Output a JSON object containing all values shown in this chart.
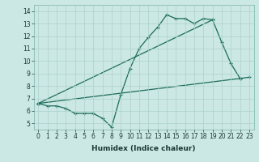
{
  "title": "",
  "xlabel": "Humidex (Indice chaleur)",
  "background_color": "#cce8e4",
  "grid_color": "#aad0cc",
  "line_color": "#1a6b5a",
  "xlim": [
    -0.5,
    23.5
  ],
  "ylim": [
    4.5,
    14.5
  ],
  "xticks": [
    0,
    1,
    2,
    3,
    4,
    5,
    6,
    7,
    8,
    9,
    10,
    11,
    12,
    13,
    14,
    15,
    16,
    17,
    18,
    19,
    20,
    21,
    22,
    23
  ],
  "yticks": [
    5,
    6,
    7,
    8,
    9,
    10,
    11,
    12,
    13,
    14
  ],
  "series": [
    {
      "x": [
        0,
        1,
        2,
        3,
        4,
        5,
        6,
        7,
        8,
        9,
        10,
        11,
        12,
        13,
        14,
        15,
        16,
        17,
        18,
        19,
        20,
        21,
        22,
        23
      ],
      "y": [
        6.6,
        6.4,
        6.4,
        6.2,
        5.8,
        5.8,
        5.8,
        5.4,
        4.7,
        7.3,
        9.4,
        11.0,
        11.9,
        12.7,
        13.7,
        13.4,
        13.4,
        13.0,
        13.4,
        13.3,
        11.5,
        9.8,
        8.6,
        8.7
      ]
    },
    {
      "x": [
        0,
        22
      ],
      "y": [
        6.6,
        8.6
      ]
    },
    {
      "x": [
        0,
        19
      ],
      "y": [
        6.6,
        13.3
      ]
    }
  ],
  "tick_fontsize": 5.5,
  "xlabel_fontsize": 6.5,
  "xlabel_fontweight": "bold"
}
